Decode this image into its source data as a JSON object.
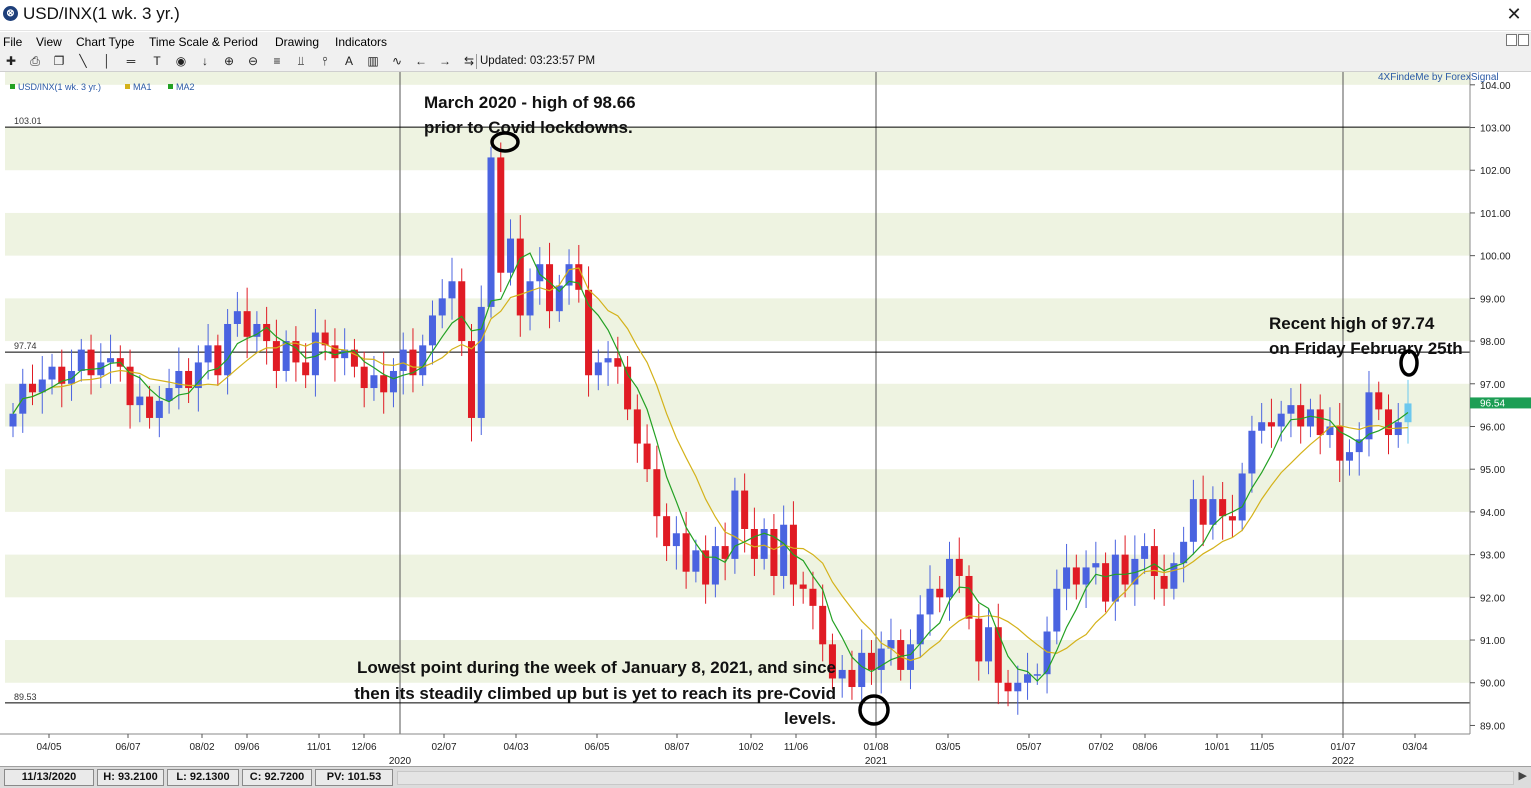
{
  "window": {
    "title": "USD/INX(1 wk.  3 yr.)",
    "close_glyph": "✕",
    "app_glyph": "⊗"
  },
  "menu": [
    "File",
    "View",
    "Chart Type",
    "Time Scale & Period",
    "Drawing",
    "Indicators"
  ],
  "toolbar": {
    "updated": "Updated: 03:23:57 PM"
  },
  "legend": [
    "USD/INX(1 wk.  3 yr.)",
    "MA1",
    "MA2"
  ],
  "watermark": "4XFindeMe by ForexSignal",
  "colors": {
    "up": "#4a63e0",
    "down": "#e01b24",
    "ma1": "#23a123",
    "ma2": "#d4b21a",
    "band": "#eef3e1",
    "price_tag": "#1d9e55",
    "last_candle": "#6cc8ee"
  },
  "annotations": [
    {
      "lines": [
        "March 2020 - high of 98.66",
        "prior to Covid lockdowns."
      ]
    },
    {
      "lines": [
        "Recent high of 97.74",
        "on Friday February 25th"
      ]
    },
    {
      "lines": [
        "Lowest point during the week of January 8, 2021, and since",
        "then its steadily climbed up but is yet to reach its pre-Covid",
        "levels."
      ]
    }
  ],
  "chart_data": {
    "type": "candlestick",
    "ylim": [
      88.8,
      104.3
    ],
    "y_ticks": [
      "104.00",
      "103.00",
      "102.00",
      "101.00",
      "100.00",
      "99.00",
      "98.00",
      "97.00",
      "96.00",
      "95.00",
      "94.00",
      "93.00",
      "92.00",
      "91.00",
      "90.00",
      "89.00"
    ],
    "hlines": [
      {
        "value": 103.01,
        "label": "103.01"
      },
      {
        "value": 97.74,
        "label": "97.74"
      },
      {
        "value": 89.53,
        "label": "89.53"
      }
    ],
    "current_price": "96.54",
    "x_ticks": [
      "04/05",
      "06/07",
      "08/02",
      "09/06",
      "11/01",
      "12/06",
      "02/07",
      "04/03",
      "06/05",
      "08/07",
      "10/02",
      "11/06",
      "01/08",
      "03/05",
      "05/07",
      "07/02",
      "08/06",
      "10/01",
      "11/05",
      "01/07",
      "03/04"
    ],
    "years": [
      "2020",
      "2021",
      "2022"
    ],
    "closes": [
      96.3,
      97.0,
      96.8,
      97.1,
      97.4,
      97.0,
      97.3,
      97.8,
      97.2,
      97.5,
      97.6,
      97.4,
      96.5,
      96.7,
      96.2,
      96.6,
      96.9,
      97.3,
      96.9,
      97.5,
      97.9,
      97.2,
      98.4,
      98.7,
      98.1,
      98.4,
      98.0,
      97.3,
      98.0,
      97.5,
      97.2,
      98.2,
      97.9,
      97.6,
      97.8,
      97.4,
      96.9,
      97.2,
      96.8,
      97.3,
      97.8,
      97.2,
      97.9,
      98.6,
      99.0,
      99.4,
      98.0,
      96.2,
      98.8,
      102.3,
      99.6,
      100.4,
      98.6,
      99.4,
      99.8,
      98.7,
      99.3,
      99.8,
      99.2,
      97.2,
      97.5,
      97.6,
      97.4,
      96.4,
      95.6,
      95.0,
      93.9,
      93.2,
      93.5,
      92.6,
      93.1,
      92.3,
      93.2,
      92.9,
      94.5,
      93.6,
      92.9,
      93.6,
      92.5,
      93.7,
      92.3,
      92.2,
      91.8,
      90.9,
      90.1,
      90.3,
      89.9,
      90.7,
      90.3,
      90.8,
      91.0,
      90.3,
      90.9,
      91.6,
      92.2,
      92.0,
      92.9,
      92.5,
      91.5,
      90.5,
      91.3,
      90.0,
      89.8,
      90.0,
      90.2,
      90.2,
      91.2,
      92.2,
      92.7,
      92.3,
      92.7,
      92.8,
      91.9,
      93.0,
      92.3,
      92.9,
      93.2,
      92.5,
      92.2,
      92.8,
      93.3,
      94.3,
      93.7,
      94.3,
      93.9,
      93.8,
      94.9,
      95.9,
      96.1,
      96.0,
      96.3,
      96.5,
      96.0,
      96.4,
      95.8,
      96.0,
      95.2,
      95.4,
      95.7,
      96.8,
      96.4,
      95.8,
      96.1,
      96.54
    ]
  },
  "status": [
    "11/13/2020",
    "H: 93.2100",
    "L: 92.1300",
    "C: 92.7200",
    "PV: 101.53"
  ]
}
